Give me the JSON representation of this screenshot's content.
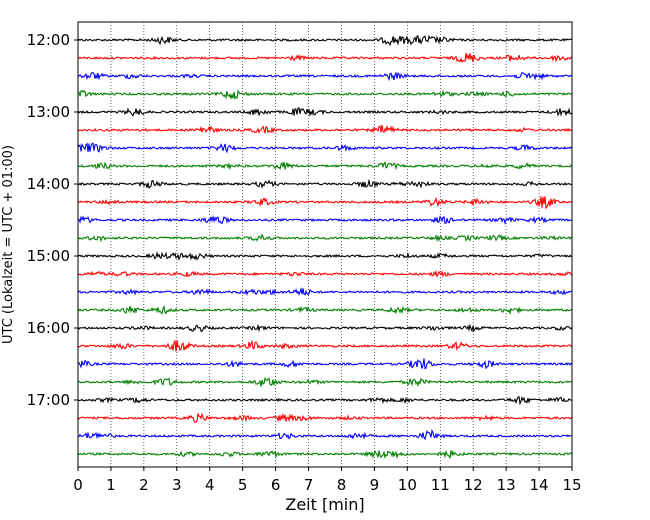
{
  "chart_data": {
    "type": "line",
    "title": "",
    "xlabel": "Zeit  [min]",
    "ylabel": "UTC (Lokalzeit = UTC + 01:00)",
    "xlim": [
      0,
      15
    ],
    "x_ticks": [
      "0",
      "1",
      "2",
      "3",
      "4",
      "5",
      "6",
      "7",
      "8",
      "9",
      "10",
      "11",
      "12",
      "13",
      "14",
      "15"
    ],
    "y_ticks": [
      "12:00",
      "13:00",
      "14:00",
      "15:00",
      "16:00",
      "17:00"
    ],
    "grid": "vertical dotted lines at each minute",
    "trace_interval_minutes": 15,
    "trace_start": "12:00",
    "trace_count": 24,
    "trace_colors": [
      "#000000",
      "#ff0000",
      "#0000ff",
      "#008000"
    ],
    "signal": "seismogram traces, low-amplitude noise"
  }
}
